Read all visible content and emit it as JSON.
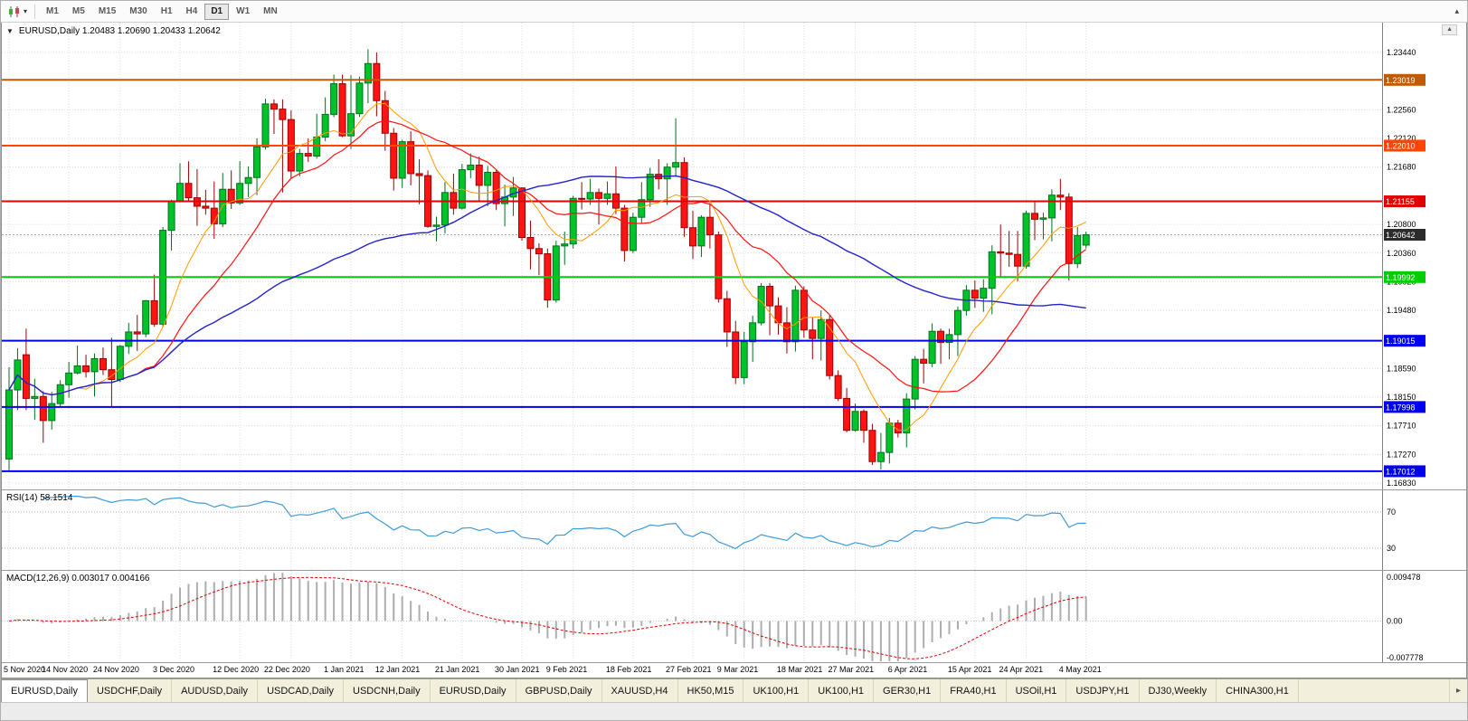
{
  "toolbar": {
    "timeframes": [
      {
        "label": "M1",
        "active": false
      },
      {
        "label": "M5",
        "active": false
      },
      {
        "label": "M15",
        "active": false
      },
      {
        "label": "M30",
        "active": false
      },
      {
        "label": "H1",
        "active": false
      },
      {
        "label": "H4",
        "active": false
      },
      {
        "label": "D1",
        "active": true
      },
      {
        "label": "W1",
        "active": false
      },
      {
        "label": "MN",
        "active": false
      }
    ],
    "overflow_glyph": "▴"
  },
  "chart_data": {
    "type": "candlestick",
    "symbol": "EURUSD",
    "period": "Daily",
    "title_line": "EURUSD,Daily 1.20483 1.20690 1.20433 1.20642",
    "ohlc_display": {
      "open": "1.20483",
      "high": "1.20690",
      "low": "1.20433",
      "close": "1.20642"
    },
    "x_labels": [
      "5 Nov 2020",
      "14 Nov 2020",
      "24 Nov 2020",
      "3 Dec 2020",
      "12 Dec 2020",
      "22 Dec 2020",
      "1 Jan 2021",
      "12 Jan 2021",
      "21 Jan 2021",
      "30 Jan 2021",
      "9 Feb 2021",
      "18 Feb 2021",
      "27 Feb 2021",
      "9 Mar 2021",
      "18 Mar 2021",
      "27 Mar 2021",
      "6 Apr 2021",
      "15 Apr 2021",
      "24 Apr 2021",
      "4 May 2021"
    ],
    "y_axis": {
      "top": 1.23898,
      "bottom": 1.16733,
      "ticks": [
        "1.23440",
        "1.22560",
        "1.22120",
        "1.21680",
        "1.20800",
        "1.20360",
        "1.19920",
        "1.19480",
        "1.18590",
        "1.18150",
        "1.17710",
        "1.17270",
        "1.16830"
      ]
    },
    "levels": [
      {
        "price": 1.23019,
        "label": "1.23019",
        "color": "#C25A00"
      },
      {
        "price": 1.2201,
        "label": "1.22010",
        "color": "#FF4500"
      },
      {
        "price": 1.21155,
        "label": "1.21155",
        "color": "#E10000"
      },
      {
        "price": 1.19992,
        "label": "1.19992",
        "color": "#00CE00"
      },
      {
        "price": 1.19015,
        "label": "1.19015",
        "color": "#0000F0"
      },
      {
        "price": 1.17998,
        "label": "1.17998",
        "color": "#0000F0"
      },
      {
        "price": 1.17012,
        "label": "1.17012",
        "color": "#0000F0"
      }
    ],
    "current_price": {
      "value": 1.20642,
      "label": "1.20642",
      "color": "#2b2b2b",
      "line_color": "#8a8a8a"
    },
    "candle_colors": {
      "up_fill": "#00C32A",
      "up_stroke": "#00701C",
      "down_fill": "#FF1414",
      "down_stroke": "#9B0000"
    },
    "moving_averages": [
      {
        "period": 8,
        "color": "#FF9900",
        "width": 1
      },
      {
        "period": 16,
        "color": "#FF1010",
        "width": 1.2
      },
      {
        "period": 50,
        "color": "#2222CC",
        "width": 1.4
      }
    ],
    "indicators": {
      "rsi": {
        "label": "RSI(14) 58.1514",
        "period": 14,
        "value": "58.1514",
        "levels": [
          {
            "value": 70,
            "label": "70"
          },
          {
            "value": 30,
            "label": "30"
          }
        ],
        "color": "#3E9BD8"
      },
      "macd": {
        "label": "MACD(12,26,9) 0.003017 0.004166",
        "fast": 12,
        "slow": 26,
        "signal": 9,
        "main_value": "0.003017",
        "signal_value": "0.004166",
        "axis_max": 0.009478,
        "axis_min": -0.007778,
        "axis_labels": [
          "0.009478",
          "0.00",
          "-0.007778"
        ],
        "hist_color": "#ADADAD",
        "signal_color": "#DD0000"
      }
    },
    "candles": [
      [
        1.172,
        1.1861,
        1.1703,
        1.1826
      ],
      [
        1.1826,
        1.189,
        1.1795,
        1.1872
      ],
      [
        1.188,
        1.192,
        1.1795,
        1.1813
      ],
      [
        1.1813,
        1.1843,
        1.178,
        1.1816
      ],
      [
        1.1816,
        1.1824,
        1.1745,
        1.1779
      ],
      [
        1.1779,
        1.1823,
        1.1765,
        1.1805
      ],
      [
        1.1805,
        1.1841,
        1.1799,
        1.1834
      ],
      [
        1.1834,
        1.1869,
        1.1814,
        1.1852
      ],
      [
        1.1852,
        1.1894,
        1.185,
        1.1863
      ],
      [
        1.1863,
        1.188,
        1.1845,
        1.1854
      ],
      [
        1.1854,
        1.1882,
        1.1816,
        1.1874
      ],
      [
        1.1874,
        1.1891,
        1.1849,
        1.1857
      ],
      [
        1.1857,
        1.1906,
        1.18,
        1.1842
      ],
      [
        1.1842,
        1.1895,
        1.1838,
        1.1893
      ],
      [
        1.1893,
        1.1929,
        1.1881,
        1.1915
      ],
      [
        1.1915,
        1.1941,
        1.1886,
        1.1912
      ],
      [
        1.1912,
        1.1964,
        1.1907,
        1.1963
      ],
      [
        1.1963,
        1.2003,
        1.1923,
        1.1927
      ],
      [
        1.1927,
        1.2076,
        1.1922,
        1.2071
      ],
      [
        1.2071,
        1.2118,
        1.204,
        1.2115
      ],
      [
        1.2115,
        1.2174,
        1.2114,
        1.2143
      ],
      [
        1.2143,
        1.2177,
        1.2116,
        1.2121
      ],
      [
        1.2121,
        1.2165,
        1.2078,
        1.2108
      ],
      [
        1.2108,
        1.2133,
        1.2095,
        1.2105
      ],
      [
        1.2105,
        1.2146,
        1.2058,
        1.2081
      ],
      [
        1.2081,
        1.2159,
        1.2076,
        1.2134
      ],
      [
        1.2134,
        1.2163,
        1.2104,
        1.2113
      ],
      [
        1.2113,
        1.2177,
        1.211,
        1.2143
      ],
      [
        1.2143,
        1.2169,
        1.2122,
        1.2152
      ],
      [
        1.2152,
        1.2212,
        1.2125,
        1.2199
      ],
      [
        1.2199,
        1.2273,
        1.2195,
        1.2265
      ],
      [
        1.2265,
        1.2272,
        1.2219,
        1.2257
      ],
      [
        1.2257,
        1.2272,
        1.2129,
        1.2241
      ],
      [
        1.2241,
        1.2255,
        1.2151,
        1.2162
      ],
      [
        1.2162,
        1.2196,
        1.2154,
        1.2189
      ],
      [
        1.2189,
        1.2212,
        1.2176,
        1.2185
      ],
      [
        1.2185,
        1.225,
        1.2181,
        1.2214
      ],
      [
        1.2214,
        1.2275,
        1.2208,
        1.2249
      ],
      [
        1.2249,
        1.231,
        1.2245,
        1.2296
      ],
      [
        1.2296,
        1.231,
        1.2214,
        1.2216
      ],
      [
        1.2216,
        1.2309,
        1.2196,
        1.225
      ],
      [
        1.225,
        1.2307,
        1.2245,
        1.2297
      ],
      [
        1.2297,
        1.2349,
        1.2266,
        1.2327
      ],
      [
        1.2327,
        1.2344,
        1.2246,
        1.227
      ],
      [
        1.227,
        1.2285,
        1.2193,
        1.222
      ],
      [
        1.222,
        1.2228,
        1.2132,
        1.2151
      ],
      [
        1.2151,
        1.221,
        1.2136,
        1.2207
      ],
      [
        1.2207,
        1.2223,
        1.214,
        1.2158
      ],
      [
        1.2158,
        1.218,
        1.2111,
        1.2155
      ],
      [
        1.2155,
        1.2163,
        1.2075,
        1.2077
      ],
      [
        1.2077,
        1.2092,
        1.2054,
        1.2079
      ],
      [
        1.2079,
        1.2145,
        1.2066,
        1.2129
      ],
      [
        1.2129,
        1.2158,
        1.2095,
        1.2105
      ],
      [
        1.2105,
        1.2173,
        1.2103,
        1.2164
      ],
      [
        1.2164,
        1.2189,
        1.2151,
        1.2171
      ],
      [
        1.2171,
        1.2184,
        1.2116,
        1.214
      ],
      [
        1.214,
        1.217,
        1.2108,
        1.216
      ],
      [
        1.216,
        1.2164,
        1.2102,
        1.2112
      ],
      [
        1.2112,
        1.2141,
        1.2077,
        1.2122
      ],
      [
        1.2122,
        1.2153,
        1.2093,
        1.2136
      ],
      [
        1.2136,
        1.2137,
        1.2055,
        1.206
      ],
      [
        1.206,
        1.2086,
        1.2011,
        1.2043
      ],
      [
        1.2043,
        1.2051,
        1.2002,
        1.2035
      ],
      [
        1.2035,
        1.2043,
        1.1952,
        1.1964
      ],
      [
        1.1964,
        1.2055,
        1.196,
        1.2047
      ],
      [
        1.2047,
        1.2069,
        1.2018,
        1.205
      ],
      [
        1.205,
        1.2124,
        1.2043,
        1.212
      ],
      [
        1.212,
        1.2145,
        1.2103,
        1.2119
      ],
      [
        1.2119,
        1.215,
        1.211,
        1.2129
      ],
      [
        1.2129,
        1.2135,
        1.208,
        1.212
      ],
      [
        1.212,
        1.2146,
        1.211,
        1.2127
      ],
      [
        1.2127,
        1.2169,
        1.2096,
        1.2105
      ],
      [
        1.2105,
        1.211,
        1.2023,
        1.204
      ],
      [
        1.204,
        1.2098,
        1.2036,
        1.2091
      ],
      [
        1.2091,
        1.2145,
        1.2082,
        1.2118
      ],
      [
        1.2118,
        1.2167,
        1.2107,
        1.2157
      ],
      [
        1.2157,
        1.218,
        1.2134,
        1.215
      ],
      [
        1.215,
        1.2174,
        1.211,
        1.2168
      ],
      [
        1.2168,
        1.2243,
        1.2155,
        1.2175
      ],
      [
        1.2175,
        1.2183,
        1.2061,
        1.2075
      ],
      [
        1.2075,
        1.2101,
        1.2027,
        1.2047
      ],
      [
        1.2047,
        1.2094,
        1.203,
        1.2091
      ],
      [
        1.2091,
        1.2113,
        1.2043,
        1.2064
      ],
      [
        1.2064,
        1.2069,
        1.196,
        1.1966
      ],
      [
        1.1966,
        1.1978,
        1.1892,
        1.1915
      ],
      [
        1.1915,
        1.1932,
        1.1835,
        1.1845
      ],
      [
        1.1845,
        1.1915,
        1.1835,
        1.19
      ],
      [
        1.19,
        1.194,
        1.1869,
        1.1929
      ],
      [
        1.1929,
        1.199,
        1.1925,
        1.1985
      ],
      [
        1.1985,
        1.199,
        1.191,
        1.1955
      ],
      [
        1.1955,
        1.1968,
        1.1911,
        1.1929
      ],
      [
        1.1929,
        1.1953,
        1.1882,
        1.19
      ],
      [
        1.19,
        1.1986,
        1.1885,
        1.1979
      ],
      [
        1.1979,
        1.1985,
        1.1906,
        1.1918
      ],
      [
        1.1918,
        1.1937,
        1.1873,
        1.1905
      ],
      [
        1.1905,
        1.1948,
        1.1871,
        1.1934
      ],
      [
        1.1934,
        1.194,
        1.1842,
        1.1848
      ],
      [
        1.1848,
        1.1856,
        1.1809,
        1.1813
      ],
      [
        1.1813,
        1.1829,
        1.1761,
        1.1764
      ],
      [
        1.1764,
        1.1805,
        1.1762,
        1.1793
      ],
      [
        1.1793,
        1.1796,
        1.1745,
        1.1764
      ],
      [
        1.1764,
        1.1774,
        1.1711,
        1.1716
      ],
      [
        1.1716,
        1.176,
        1.1704,
        1.173
      ],
      [
        1.173,
        1.1783,
        1.1713,
        1.1775
      ],
      [
        1.1775,
        1.178,
        1.1753,
        1.176
      ],
      [
        1.176,
        1.1821,
        1.1738,
        1.1812
      ],
      [
        1.1812,
        1.1878,
        1.1796,
        1.1873
      ],
      [
        1.1873,
        1.1889,
        1.1836,
        1.1867
      ],
      [
        1.1867,
        1.1928,
        1.1861,
        1.1916
      ],
      [
        1.1916,
        1.192,
        1.1866,
        1.1899
      ],
      [
        1.1899,
        1.192,
        1.1873,
        1.1911
      ],
      [
        1.1911,
        1.1954,
        1.1878,
        1.1948
      ],
      [
        1.1948,
        1.1987,
        1.194,
        1.1979
      ],
      [
        1.1979,
        1.1994,
        1.1952,
        1.1967
      ],
      [
        1.1967,
        1.1996,
        1.1946,
        1.1982
      ],
      [
        1.1982,
        1.2048,
        1.1942,
        1.2038
      ],
      [
        1.2038,
        1.208,
        1.1998,
        1.2036
      ],
      [
        1.2036,
        1.207,
        1.2015,
        1.2034
      ],
      [
        1.2034,
        1.207,
        1.1993,
        1.2016
      ],
      [
        1.2016,
        1.2101,
        1.2012,
        1.2097
      ],
      [
        1.2097,
        1.2117,
        1.2056,
        1.2088
      ],
      [
        1.2088,
        1.2098,
        1.2057,
        1.209
      ],
      [
        1.209,
        1.2134,
        1.2054,
        1.2125
      ],
      [
        1.2125,
        1.215,
        1.2102,
        1.2122
      ],
      [
        1.2122,
        1.2128,
        1.1994,
        1.202
      ],
      [
        1.202,
        1.2076,
        1.2013,
        1.2063
      ],
      [
        1.20483,
        1.2069,
        1.20433,
        1.20642
      ]
    ]
  },
  "tabs": {
    "scroll_right_glyph": "▸",
    "items": [
      {
        "label": "EURUSD,Daily",
        "active": true
      },
      {
        "label": "USDCHF,Daily",
        "active": false
      },
      {
        "label": "AUDUSD,Daily",
        "active": false
      },
      {
        "label": "USDCAD,Daily",
        "active": false
      },
      {
        "label": "USDCNH,Daily",
        "active": false
      },
      {
        "label": "EURUSD,Daily",
        "active": false
      },
      {
        "label": "GBPUSD,Daily",
        "active": false
      },
      {
        "label": "XAUUSD,H4",
        "active": false
      },
      {
        "label": "HK50,M15",
        "active": false
      },
      {
        "label": "UK100,H1",
        "active": false
      },
      {
        "label": "UK100,H1",
        "active": false
      },
      {
        "label": "GER30,H1",
        "active": false
      },
      {
        "label": "FRA40,H1",
        "active": false
      },
      {
        "label": "USOil,H1",
        "active": false
      },
      {
        "label": "USDJPY,H1",
        "active": false
      },
      {
        "label": "DJ30,Weekly",
        "active": false
      },
      {
        "label": "CHINA300,H1",
        "active": false
      }
    ]
  }
}
